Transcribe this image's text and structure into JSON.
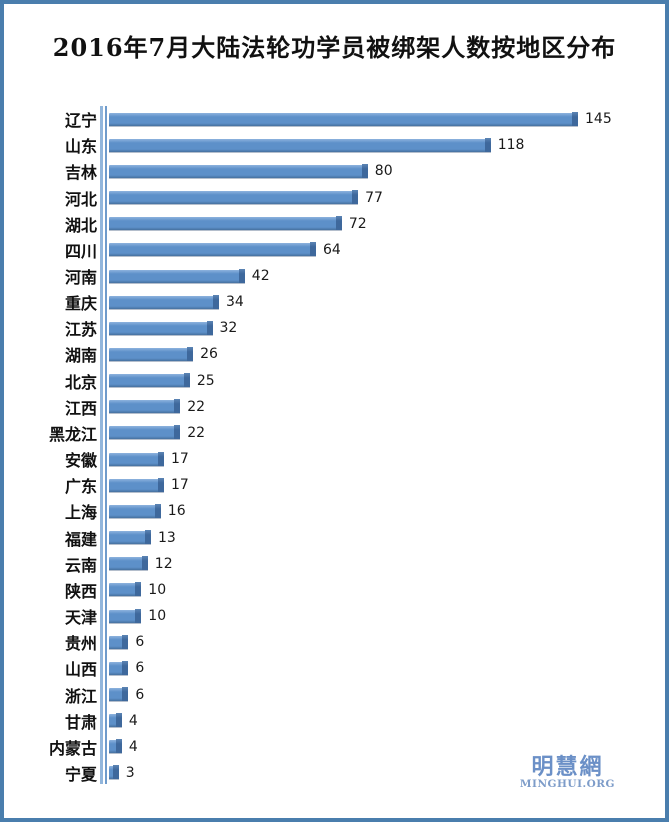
{
  "title": "2016年7月大陆法轮功学员被绑架人数按地区分布",
  "logo": {
    "cn": "明慧網",
    "en": "MINGHUI.ORG"
  },
  "colors": {
    "frame_border": "#4a7ead",
    "background": "#ffffff",
    "bar_body": "#5d90c9",
    "bar_cap": "#3e689c",
    "axis_light": "#92b6dc",
    "axis_dark": "#6f9bcb",
    "logo_cn": "#6b90c7",
    "logo_en": "#7d9cc9",
    "text": "#111111"
  },
  "chart_data": {
    "type": "bar",
    "orientation": "horizontal",
    "title": "2016年7月大陆法轮功学员被绑架人数按地区分布",
    "categories": [
      "辽宁",
      "山东",
      "吉林",
      "河北",
      "湖北",
      "四川",
      "河南",
      "重庆",
      "江苏",
      "湖南",
      "北京",
      "江西",
      "黑龙江",
      "安徽",
      "广东",
      "上海",
      "福建",
      "云南",
      "陕西",
      "天津",
      "贵州",
      "山西",
      "浙江",
      "甘肃",
      "内蒙古",
      "宁夏"
    ],
    "values": [
      145,
      118,
      80,
      77,
      72,
      64,
      42,
      34,
      32,
      26,
      25,
      22,
      22,
      17,
      17,
      16,
      13,
      12,
      10,
      10,
      6,
      6,
      6,
      4,
      4,
      3
    ],
    "xlim": [
      0,
      145
    ],
    "value_labels": true,
    "grid": false,
    "legend": false,
    "sorted": "descending"
  }
}
